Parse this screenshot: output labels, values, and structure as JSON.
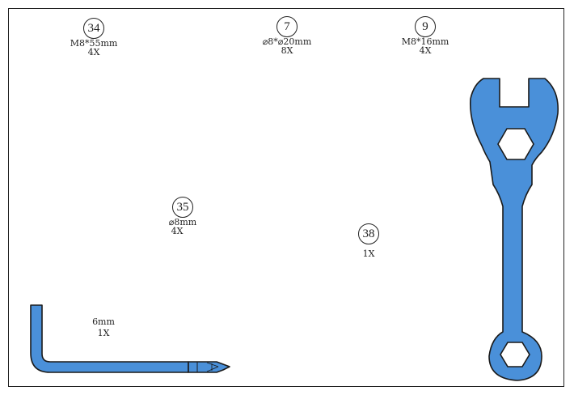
{
  "colors": {
    "tool_fill": "#4a90d9",
    "outline": "#1a1a1a",
    "frame": "#222222"
  },
  "parts": [
    {
      "number": "34",
      "spec": "M8*55mm",
      "qty": "4X"
    },
    {
      "number": "7",
      "spec": "⌀8*⌀20mm",
      "qty": "8X"
    },
    {
      "number": "9",
      "spec": "M8*16mm",
      "qty": "4X"
    },
    {
      "number": "35",
      "spec": "⌀8mm",
      "qty": "4X"
    },
    {
      "number": "38",
      "spec": "",
      "qty": "1X"
    }
  ],
  "hex_key": {
    "spec": "6mm",
    "qty": "1X"
  },
  "icons": {
    "hex_key": "allen-key-icon",
    "wrench": "wrench-icon"
  }
}
